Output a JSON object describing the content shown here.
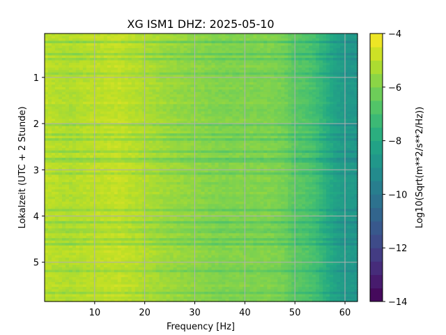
{
  "chart_data": {
    "type": "heatmap",
    "title": "XG ISM1  DHZ: 2025-05-10",
    "xlabel": "Frequency [Hz]",
    "ylabel": "Lokalzeit (UTC + 2 Stunde)",
    "colorbar_label": "Log10(Sqrt(m**2/s**2/Hz))",
    "colormap": "viridis",
    "x_range": [
      0,
      62.5
    ],
    "y_range": [
      0.05,
      5.85
    ],
    "y_inverted": true,
    "color_range": [
      -14,
      -4
    ],
    "x_ticks": [
      10,
      20,
      30,
      40,
      50,
      60
    ],
    "x_tick_labels": [
      "10",
      "20",
      "30",
      "40",
      "50",
      "60"
    ],
    "y_ticks": [
      1,
      2,
      3,
      4,
      5
    ],
    "y_tick_labels": [
      "1",
      "2",
      "3",
      "4",
      "5"
    ],
    "colorbar_ticks": [
      -4,
      -6,
      -8,
      -10,
      -12,
      -14
    ],
    "colorbar_tick_labels": [
      "−4",
      "−6",
      "−8",
      "−10",
      "−12",
      "−14"
    ],
    "grid": true,
    "spectral_profile": {
      "frequency_hz": [
        0,
        5,
        10,
        15,
        20,
        25,
        30,
        35,
        40,
        45,
        48,
        50,
        52,
        54,
        56,
        58,
        60,
        62.5
      ],
      "log10_amplitude": [
        -5.0,
        -5.2,
        -5.0,
        -4.9,
        -5.2,
        -5.5,
        -5.7,
        -5.9,
        -5.9,
        -5.9,
        -6.1,
        -6.6,
        -6.7,
        -7.0,
        -7.6,
        -8.2,
        -8.6,
        -8.7
      ]
    }
  }
}
